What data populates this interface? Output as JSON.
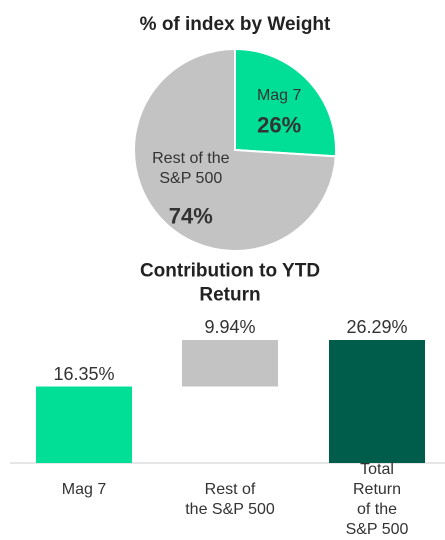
{
  "chart_data": [
    {
      "type": "pie",
      "title": "% of index by Weight",
      "categories": [
        "Mag 7",
        "Rest of the\nS&P 500"
      ],
      "values": [
        26,
        74
      ],
      "value_labels": [
        "26%",
        "74%"
      ],
      "colors": [
        "#00df95",
        "#c3c3c3"
      ]
    },
    {
      "type": "waterfall",
      "title": "Contribution to YTD Return",
      "categories": [
        "Mag 7",
        "Rest of\nthe S&P 500",
        "Total Return\nof the S&P 500"
      ],
      "values": [
        16.35,
        9.94,
        26.29
      ],
      "value_labels": [
        "16.35%",
        "9.94%",
        "26.29%"
      ],
      "colors": [
        "#00df95",
        "#c3c3c3",
        "#005c4b"
      ]
    }
  ]
}
